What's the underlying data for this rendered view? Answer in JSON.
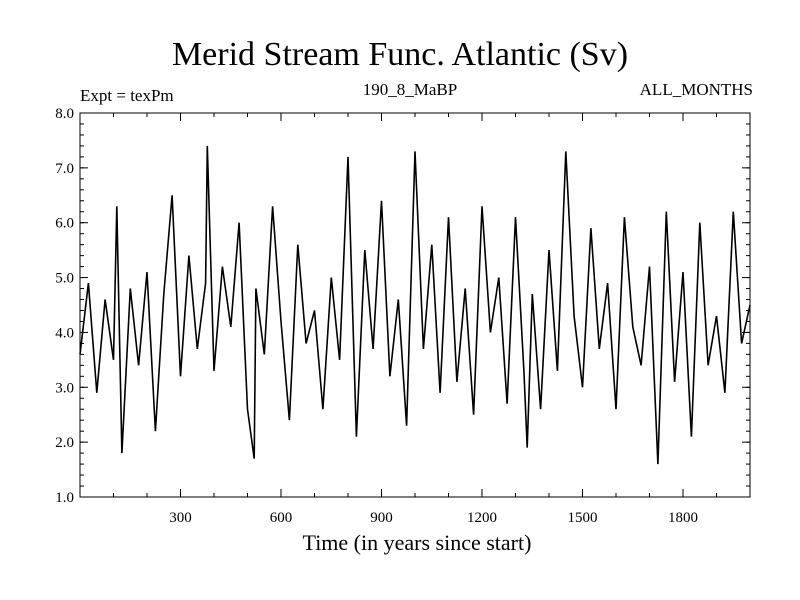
{
  "chart_data": {
    "type": "line",
    "title": "Merid Stream Func. Atlantic (Sv)",
    "subtitle": "190_8_MaBP",
    "expt_label": "Expt = texPm",
    "period_label": "ALL_MONTHS",
    "xlabel": "Time (in years since start)",
    "ylabel": "",
    "xlim": [
      0,
      2000
    ],
    "ylim": [
      1.0,
      8.0
    ],
    "xticks": [
      300,
      600,
      900,
      1200,
      1500,
      1800
    ],
    "xtick_labels": [
      "300",
      "600",
      "900",
      "1200",
      "1500",
      "1800"
    ],
    "yticks": [
      1.0,
      2.0,
      3.0,
      4.0,
      5.0,
      6.0,
      7.0,
      8.0
    ],
    "ytick_labels": [
      "1.0",
      "2.0",
      "3.0",
      "4.0",
      "5.0",
      "6.0",
      "7.0",
      "8.0"
    ],
    "series": [
      {
        "name": "Merid Stream Func. Atlantic",
        "color": "#000000",
        "x": [
          0,
          25,
          50,
          75,
          100,
          110,
          125,
          150,
          175,
          200,
          225,
          250,
          275,
          300,
          325,
          350,
          375,
          380,
          400,
          425,
          450,
          475,
          500,
          520,
          525,
          550,
          575,
          600,
          625,
          650,
          675,
          700,
          725,
          750,
          775,
          800,
          825,
          850,
          875,
          900,
          925,
          950,
          975,
          1000,
          1025,
          1050,
          1075,
          1100,
          1125,
          1150,
          1175,
          1200,
          1225,
          1250,
          1275,
          1300,
          1325,
          1335,
          1350,
          1375,
          1400,
          1425,
          1450,
          1475,
          1500,
          1525,
          1550,
          1575,
          1600,
          1625,
          1650,
          1675,
          1700,
          1725,
          1750,
          1775,
          1800,
          1825,
          1850,
          1875,
          1900,
          1925,
          1950,
          1975,
          2000
        ],
        "y": [
          3.6,
          4.9,
          2.9,
          4.6,
          3.5,
          6.3,
          1.8,
          4.8,
          3.4,
          5.1,
          2.2,
          4.7,
          6.5,
          3.2,
          5.4,
          3.7,
          4.9,
          7.4,
          3.3,
          5.2,
          4.1,
          6.0,
          2.6,
          1.7,
          4.8,
          3.6,
          6.3,
          4.2,
          2.4,
          5.6,
          3.8,
          4.4,
          2.6,
          5.0,
          3.5,
          7.2,
          2.1,
          5.5,
          3.7,
          6.4,
          3.2,
          4.6,
          2.3,
          7.3,
          3.7,
          5.6,
          2.9,
          6.1,
          3.1,
          4.8,
          2.5,
          6.3,
          4.0,
          5.0,
          2.7,
          6.1,
          3.3,
          1.9,
          4.7,
          2.6,
          5.5,
          3.3,
          7.3,
          4.3,
          3.0,
          5.9,
          3.7,
          4.9,
          2.6,
          6.1,
          4.1,
          3.4,
          5.2,
          1.6,
          6.2,
          3.1,
          5.1,
          2.1,
          6.0,
          3.4,
          4.3,
          2.9,
          6.2,
          3.8,
          4.5
        ]
      }
    ]
  }
}
